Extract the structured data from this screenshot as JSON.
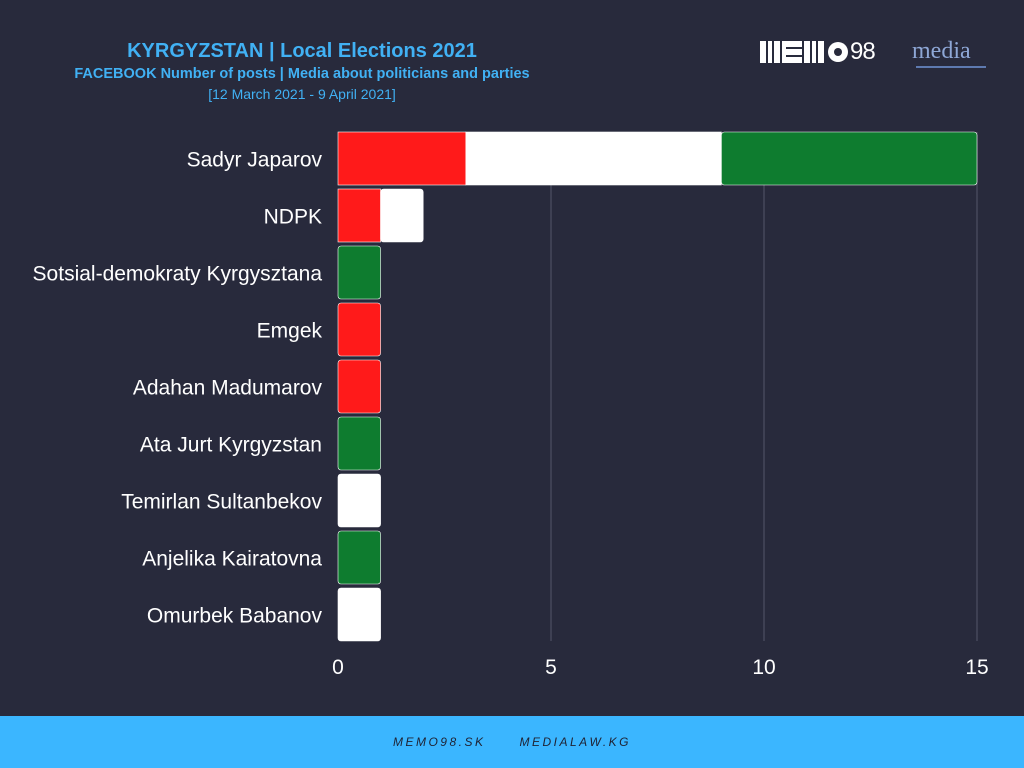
{
  "header": {
    "title": "KYRGYZSTAN | Local Elections 2021",
    "subtitle": "FACEBOOK Number of posts | Media about politicians and parties",
    "date_range": "[12 March 2021 - 9 April 2021]"
  },
  "logos": {
    "memo_text": "98",
    "media_text": "media"
  },
  "footer": {
    "links": [
      "MEMO98.SK",
      "MEDIALAW.KG"
    ]
  },
  "colors": {
    "background": "#282a3c",
    "accent": "#41b1f4",
    "footer_bg": "#3bb6ff",
    "series": [
      "#ff1a1a",
      "#ffffff",
      "#0e7c2f"
    ],
    "grid": "#55576a"
  },
  "chart_data": {
    "type": "bar",
    "orientation": "horizontal",
    "stacked": true,
    "categories": [
      "Sadyr Japarov",
      "NDPK",
      "Sotsial-demokraty Kyrgysztana",
      "Emgek",
      "Adahan Madumarov",
      "Ata Jurt Kyrgyzstan",
      "Temirlan Sultanbekov",
      "Anjelika Kairatovna",
      "Omurbek Babanov"
    ],
    "series": [
      {
        "color": "#ff1a1a",
        "values": [
          3,
          1,
          0,
          1,
          1,
          0,
          0,
          0,
          0
        ]
      },
      {
        "color": "#ffffff",
        "values": [
          6,
          1,
          0,
          0,
          0,
          0,
          1,
          0,
          1
        ]
      },
      {
        "color": "#0e7c2f",
        "values": [
          6,
          0,
          1,
          0,
          0,
          1,
          0,
          1,
          0
        ]
      }
    ],
    "xlim": [
      0,
      15
    ],
    "xticks": [
      0,
      5,
      10,
      15
    ],
    "grid": true,
    "legend": "none",
    "title": "",
    "xlabel": "",
    "ylabel": ""
  }
}
